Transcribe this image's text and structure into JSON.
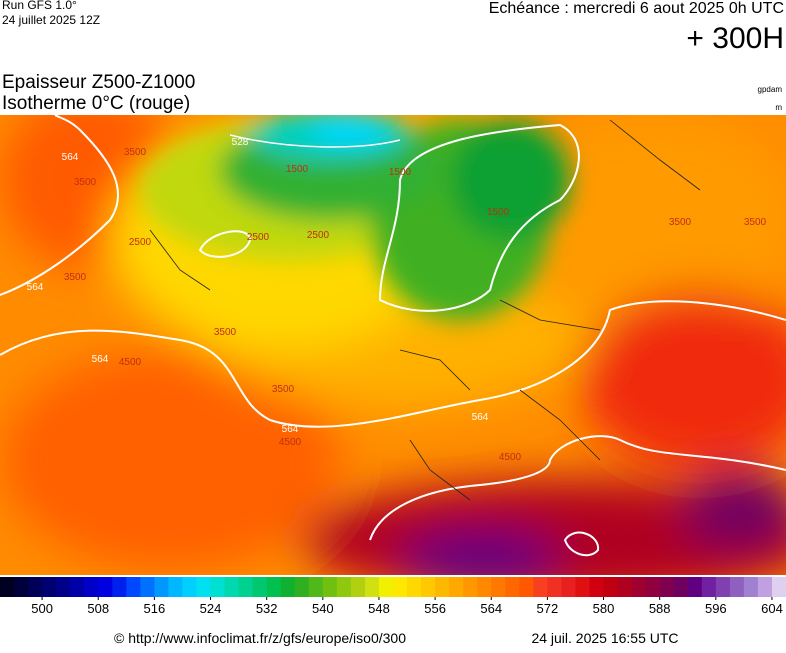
{
  "header": {
    "run": "Run GFS 1.0°",
    "run_date": "24 juillet 2025 12Z",
    "valid": "Echéance : mercredi 6 aout 2025 0h UTC",
    "lead": "+ 300H",
    "title1": "Epaisseur Z500-Z1000",
    "title2": "Isotherme 0°C (rouge)",
    "unit1": "gpdam",
    "unit2": "m"
  },
  "map": {
    "labels": [
      "564",
      "564",
      "564",
      "564",
      "564",
      "528",
      "3500",
      "3500",
      "3500",
      "3500",
      "3500",
      "2500",
      "2500",
      "1500",
      "1500",
      "1500",
      "4500",
      "4500",
      "4500",
      "2500",
      "3500",
      "3500"
    ]
  },
  "colorbar": {
    "ticks": [
      500,
      508,
      516,
      524,
      532,
      540,
      548,
      556,
      564,
      572,
      580,
      588,
      596,
      604
    ],
    "colors": [
      "#000020",
      "#00003a",
      "#000058",
      "#000070",
      "#00008a",
      "#0000a8",
      "#0000c8",
      "#0000e0",
      "#0020f0",
      "#0048ff",
      "#0070ff",
      "#0098ff",
      "#00b8ff",
      "#00d0ff",
      "#00e0f0",
      "#00e0d0",
      "#00d8b0",
      "#00d090",
      "#00c870",
      "#00c050",
      "#10b030",
      "#30b020",
      "#50b818",
      "#70c010",
      "#90c810",
      "#b0d010",
      "#d0e010",
      "#f0f000",
      "#ffe800",
      "#ffd800",
      "#ffc800",
      "#ffb800",
      "#ffa800",
      "#ff9800",
      "#ff8800",
      "#ff7800",
      "#ff6800",
      "#ff5800",
      "#f84020",
      "#f03020",
      "#e82020",
      "#e01010",
      "#d00010",
      "#c00010",
      "#b00020",
      "#a00030",
      "#900040",
      "#800050",
      "#700060",
      "#600080",
      "#7020a0",
      "#8040b0",
      "#9060c0",
      "#a080d0",
      "#c0a0e0",
      "#e0d0f0"
    ]
  },
  "footer": {
    "url": "© http://www.infoclimat.fr/z/gfs/europe/iso0/300",
    "generated": "24 juil. 2025 16:55 UTC"
  }
}
